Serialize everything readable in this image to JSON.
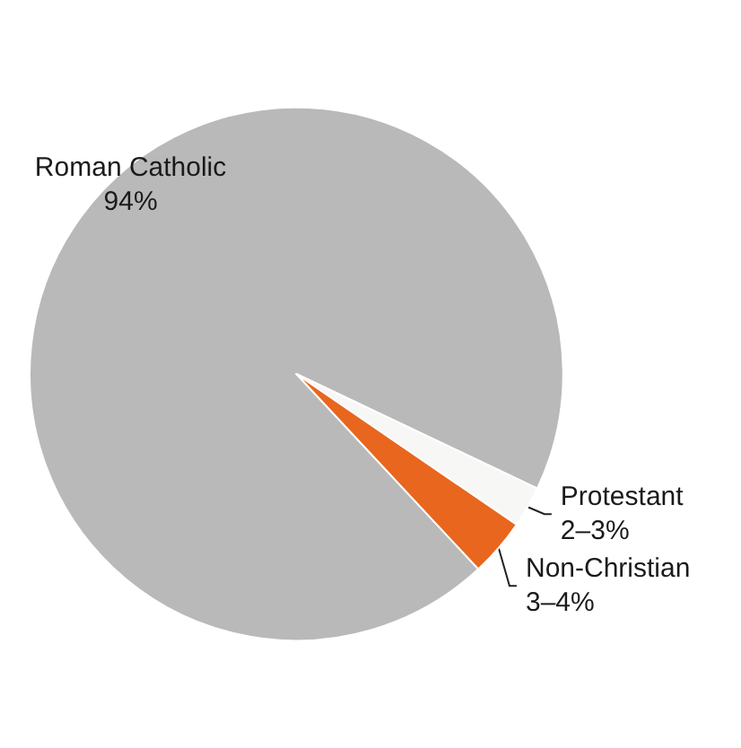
{
  "chart_data": {
    "type": "pie",
    "categories": [
      "Roman Catholic",
      "Protestant",
      "Non-Christian"
    ],
    "values": [
      94,
      2.5,
      3.5
    ],
    "value_labels": [
      "94%",
      "2–3%",
      "3–4%"
    ],
    "colors": [
      "#b9b9b9",
      "#f7f7f5",
      "#e8661e"
    ]
  }
}
